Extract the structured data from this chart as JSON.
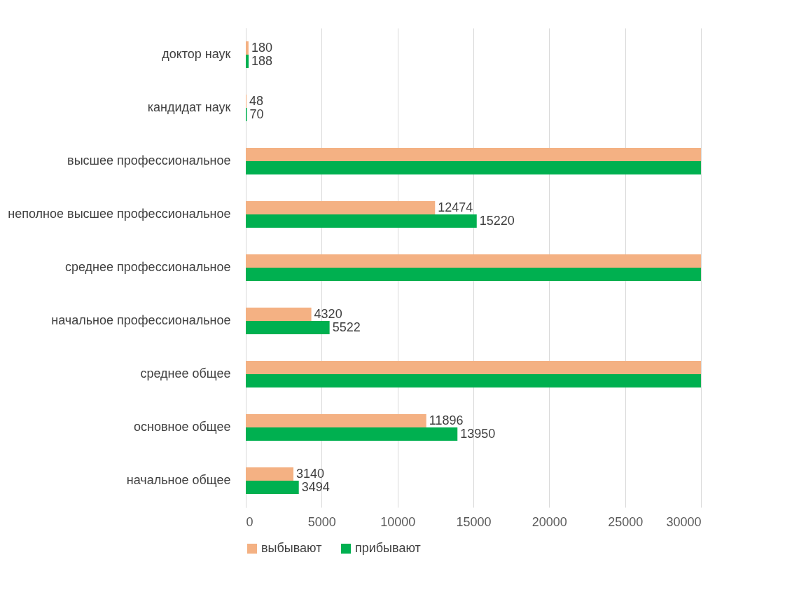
{
  "chart_data": {
    "type": "bar",
    "orientation": "horizontal",
    "categories": [
      "доктор наук",
      "кандидат наук",
      "высшее профессиональное",
      "неполное высшее профессиональное",
      "среднее профессиональное",
      "начальное профессиональное",
      "среднее общее",
      "основное общее",
      "начальное общее"
    ],
    "series": [
      {
        "name": "выбывают",
        "color": "#f4b183",
        "values": [
          180,
          48,
          30000,
          12474,
          30000,
          4320,
          30000,
          11896,
          3140
        ],
        "value_labels": [
          "180",
          "48",
          null,
          "12474",
          null,
          "4320",
          null,
          "11896",
          "3140"
        ]
      },
      {
        "name": "прибывают",
        "color": "#00b050",
        "values": [
          188,
          70,
          30000,
          15220,
          30000,
          5522,
          30000,
          13950,
          3494
        ],
        "value_labels": [
          "188",
          "70",
          null,
          "15220",
          null,
          "5522",
          null,
          "13950",
          "3494"
        ]
      }
    ],
    "xlim": [
      0,
      30000
    ],
    "xticks": [
      0,
      5000,
      10000,
      15000,
      20000,
      25000,
      30000
    ],
    "grid": "x",
    "legend": "bottom"
  }
}
